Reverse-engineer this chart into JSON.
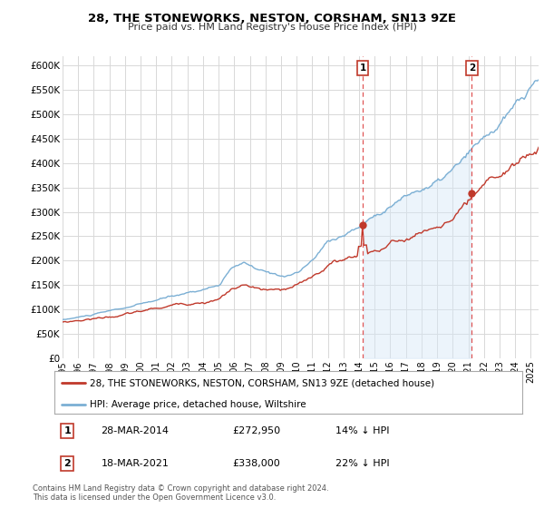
{
  "title": "28, THE STONEWORKS, NESTON, CORSHAM, SN13 9ZE",
  "subtitle": "Price paid vs. HM Land Registry's House Price Index (HPI)",
  "legend_line1": "28, THE STONEWORKS, NESTON, CORSHAM, SN13 9ZE (detached house)",
  "legend_line2": "HPI: Average price, detached house, Wiltshire",
  "point1_date": "28-MAR-2014",
  "point1_price": "£272,950",
  "point1_hpi": "14% ↓ HPI",
  "point2_date": "18-MAR-2021",
  "point2_price": "£338,000",
  "point2_hpi": "22% ↓ HPI",
  "footnote": "Contains HM Land Registry data © Crown copyright and database right 2024.\nThis data is licensed under the Open Government Licence v3.0.",
  "hpi_color": "#7bafd4",
  "hpi_fill_color": "#d6e8f7",
  "price_color": "#c0392b",
  "vline_color": "#e05555",
  "grid_color": "#d8d8d8",
  "bg_color": "#ffffff",
  "ylim": [
    0,
    620000
  ],
  "yticks": [
    0,
    50000,
    100000,
    150000,
    200000,
    250000,
    300000,
    350000,
    400000,
    450000,
    500000,
    550000,
    600000
  ],
  "ytick_labels": [
    "£0",
    "£50K",
    "£100K",
    "£150K",
    "£200K",
    "£250K",
    "£300K",
    "£350K",
    "£400K",
    "£450K",
    "£500K",
    "£550K",
    "£600K"
  ],
  "vline1_x": 2014.23,
  "vline2_x": 2021.22,
  "point1_x": 2014.23,
  "point1_y": 272950,
  "point2_x": 2021.22,
  "point2_y": 338000,
  "xmin": 1995.0,
  "xmax": 2025.5,
  "xtick_years": [
    1995,
    1996,
    1997,
    1998,
    1999,
    2000,
    2001,
    2002,
    2003,
    2004,
    2005,
    2006,
    2007,
    2008,
    2009,
    2010,
    2011,
    2012,
    2013,
    2014,
    2015,
    2016,
    2017,
    2018,
    2019,
    2020,
    2021,
    2022,
    2023,
    2024,
    2025
  ]
}
